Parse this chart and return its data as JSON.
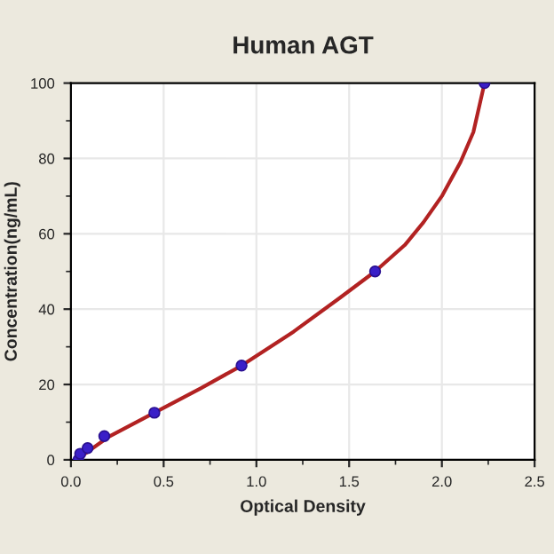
{
  "chart_data": {
    "type": "line",
    "title": "Human AGT",
    "xlabel": "Optical Density",
    "ylabel": "Concentration(ng/mL)",
    "series": [
      {
        "color": "#b22222",
        "x": [
          0.03,
          0.2,
          0.45,
          0.7,
          0.92,
          1.2,
          1.45,
          1.64,
          1.8,
          1.9,
          2.0,
          2.1,
          2.17,
          2.23
        ],
        "values": [
          0,
          6,
          12.5,
          19,
          25,
          34,
          43,
          50,
          57,
          63,
          70,
          79,
          87,
          100
        ]
      },
      {
        "type": "scatter",
        "marker": "circle",
        "color": "#3a1fc8",
        "x": [
          0.04,
          0.05,
          0.09,
          0.18,
          0.45,
          0.92,
          1.64,
          2.23
        ],
        "values": [
          0,
          1.6,
          3.1,
          6.3,
          12.5,
          25,
          50,
          100
        ]
      }
    ],
    "xlim": [
      0,
      2.5
    ],
    "xticks": [
      {
        "value": 0,
        "label": "0.0"
      },
      0.5,
      {
        "value": 1,
        "label": "1.0"
      },
      1.5,
      {
        "value": 2,
        "label": "2.0"
      },
      2.5
    ],
    "ylim": [
      0,
      100
    ],
    "yticks": [
      0,
      20,
      40,
      60,
      80,
      100
    ],
    "grid": true
  }
}
